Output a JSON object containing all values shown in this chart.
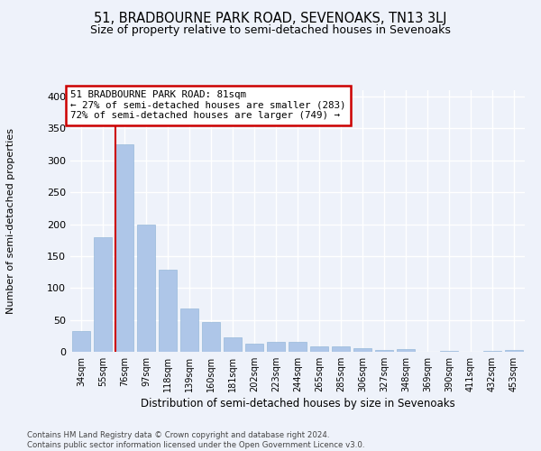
{
  "title": "51, BRADBOURNE PARK ROAD, SEVENOAKS, TN13 3LJ",
  "subtitle": "Size of property relative to semi-detached houses in Sevenoaks",
  "xlabel": "Distribution of semi-detached houses by size in Sevenoaks",
  "ylabel": "Number of semi-detached properties",
  "categories": [
    "34sqm",
    "55sqm",
    "76sqm",
    "97sqm",
    "118sqm",
    "139sqm",
    "160sqm",
    "181sqm",
    "202sqm",
    "223sqm",
    "244sqm",
    "265sqm",
    "285sqm",
    "306sqm",
    "327sqm",
    "348sqm",
    "369sqm",
    "390sqm",
    "411sqm",
    "432sqm",
    "453sqm"
  ],
  "values": [
    33,
    180,
    325,
    200,
    128,
    68,
    47,
    22,
    13,
    16,
    16,
    9,
    9,
    5,
    3,
    4,
    0,
    1,
    0,
    2,
    3
  ],
  "bar_color": "#aec6e8",
  "bar_edge_color": "#8ab0d4",
  "highlight_bar_index": 2,
  "red_line_color": "#cc0000",
  "annotation_line1": "51 BRADBOURNE PARK ROAD: 81sqm",
  "annotation_line2": "← 27% of semi-detached houses are smaller (283)",
  "annotation_line3": "72% of semi-detached houses are larger (749) →",
  "annotation_box_fc": "#ffffff",
  "annotation_box_ec": "#cc0000",
  "ylim": [
    0,
    410
  ],
  "yticks": [
    0,
    50,
    100,
    150,
    200,
    250,
    300,
    350,
    400
  ],
  "background_color": "#eef2fa",
  "grid_color": "#ffffff",
  "footer_line1": "Contains HM Land Registry data © Crown copyright and database right 2024.",
  "footer_line2": "Contains public sector information licensed under the Open Government Licence v3.0."
}
